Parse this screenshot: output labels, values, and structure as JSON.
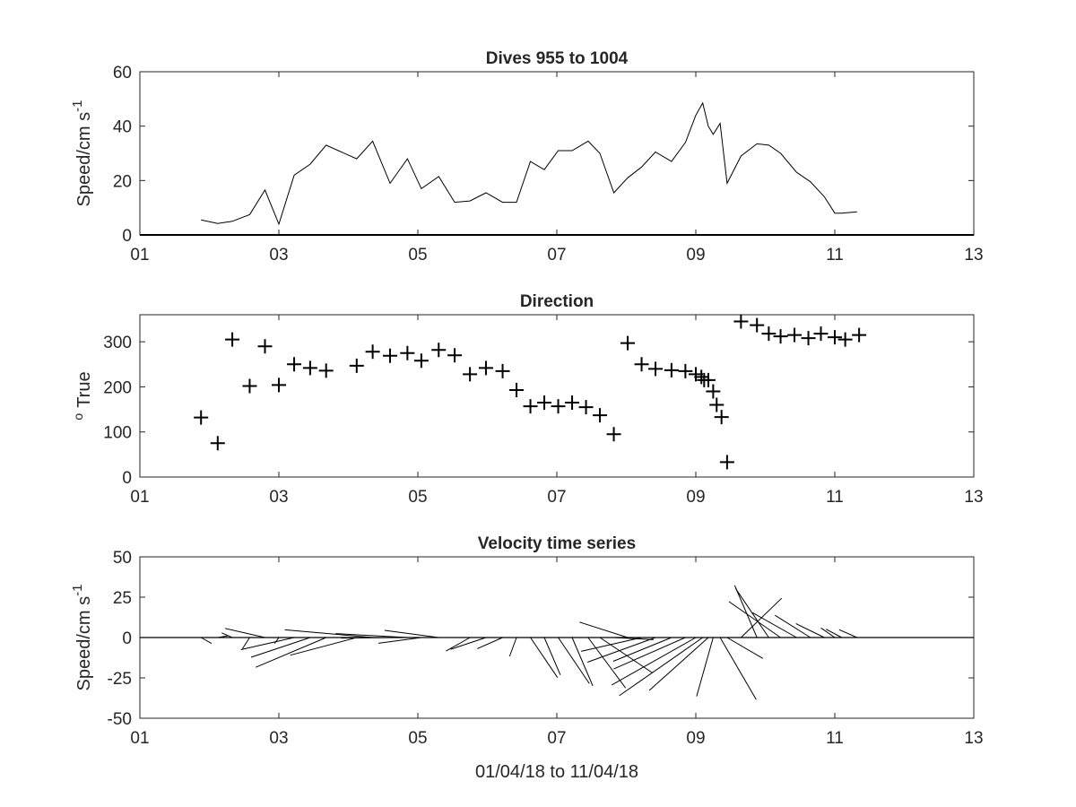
{
  "chart_data": [
    {
      "type": "line",
      "title": "Dives 955 to 1004",
      "ylabel": {
        "text": "Speed/cm s",
        "sup": "-1"
      },
      "xlabel": "",
      "xlim": [
        1,
        13
      ],
      "ylim": [
        0,
        60
      ],
      "xticks": [
        1,
        3,
        5,
        7,
        9,
        11,
        13
      ],
      "xtick_labels": [
        "01",
        "03",
        "05",
        "07",
        "09",
        "11",
        "13"
      ],
      "yticks": [
        0,
        20,
        40,
        60
      ],
      "ytick_labels": [
        "0",
        "20",
        "40",
        "60"
      ],
      "zero_line": true,
      "x": [
        1.88,
        2.12,
        2.33,
        2.58,
        2.8,
        3.0,
        3.22,
        3.45,
        3.68,
        4.12,
        4.35,
        4.6,
        4.85,
        5.05,
        5.3,
        5.53,
        5.75,
        5.98,
        6.22,
        6.42,
        6.62,
        6.82,
        7.02,
        7.22,
        7.45,
        7.62,
        7.82,
        8.02,
        8.22,
        8.42,
        8.65,
        8.85,
        9.0,
        9.1,
        9.18,
        9.25,
        9.35,
        9.45,
        9.65,
        9.88,
        10.05,
        10.22,
        10.45,
        10.65,
        10.85,
        11.0,
        11.1,
        11.32
      ],
      "y": [
        5.5,
        4.2,
        5.0,
        7.5,
        16.5,
        4.0,
        22.0,
        26.0,
        33.0,
        28.0,
        34.5,
        19.0,
        28.0,
        17.0,
        21.5,
        12.0,
        12.5,
        15.5,
        12.0,
        12.0,
        27.0,
        24.0,
        31.0,
        31.0,
        34.5,
        30.0,
        15.5,
        21.0,
        25.0,
        30.5,
        27.0,
        34.0,
        44.0,
        48.5,
        40.0,
        37.0,
        41.0,
        19.0,
        29.0,
        33.5,
        33.0,
        30.0,
        23.0,
        19.5,
        14.0,
        8.0,
        8.0,
        8.5
      ]
    },
    {
      "type": "scatter",
      "title": "Direction",
      "ylabel": {
        "text": "True",
        "sup": "o"
      },
      "xlabel": "",
      "marker": "+",
      "xlim": [
        1,
        13
      ],
      "ylim": [
        0,
        360
      ],
      "xticks": [
        1,
        3,
        5,
        7,
        9,
        11,
        13
      ],
      "xtick_labels": [
        "01",
        "03",
        "05",
        "07",
        "09",
        "11",
        "13"
      ],
      "yticks": [
        0,
        100,
        200,
        300
      ],
      "ytick_labels": [
        "0",
        "100",
        "200",
        "300"
      ],
      "x": [
        1.88,
        2.12,
        2.33,
        2.58,
        2.8,
        3.0,
        3.22,
        3.45,
        3.68,
        4.12,
        4.35,
        4.6,
        4.85,
        5.05,
        5.3,
        5.53,
        5.75,
        5.98,
        6.22,
        6.42,
        6.62,
        6.82,
        7.02,
        7.22,
        7.42,
        7.62,
        7.82,
        8.02,
        8.22,
        8.42,
        8.65,
        8.85,
        9.0,
        9.08,
        9.12,
        9.18,
        9.25,
        9.3,
        9.37,
        9.45,
        9.65,
        9.88,
        10.05,
        10.22,
        10.42,
        10.62,
        10.8,
        11.0,
        11.15,
        11.35
      ],
      "y": [
        132,
        75,
        305,
        202,
        290,
        204,
        250,
        242,
        236,
        247,
        278,
        269,
        275,
        258,
        282,
        270,
        228,
        242,
        235,
        193,
        157,
        165,
        157,
        165,
        155,
        137,
        95,
        297,
        250,
        240,
        237,
        235,
        228,
        222,
        215,
        215,
        190,
        160,
        133,
        33,
        345,
        337,
        318,
        312,
        315,
        308,
        318,
        310,
        305,
        315
      ]
    },
    {
      "type": "quiver",
      "title": "Velocity time series",
      "ylabel": {
        "text": "Speed/cm s",
        "sup": "-1"
      },
      "xlabel": "01/04/18 to 11/04/18",
      "xlim": [
        1,
        13
      ],
      "ylim": [
        -50,
        50
      ],
      "xticks": [
        1,
        3,
        5,
        7,
        9,
        11,
        13
      ],
      "xtick_labels": [
        "01",
        "03",
        "05",
        "07",
        "09",
        "11",
        "13"
      ],
      "yticks": [
        -50,
        -25,
        0,
        25,
        50
      ],
      "ytick_labels": [
        "-50",
        "-25",
        "0",
        "25",
        "50"
      ],
      "zero_line": true,
      "x": [
        1.88,
        2.12,
        2.33,
        2.58,
        2.8,
        3.0,
        3.22,
        3.45,
        3.68,
        4.12,
        4.35,
        4.6,
        4.85,
        5.05,
        5.3,
        5.53,
        5.75,
        5.98,
        6.22,
        6.42,
        6.62,
        6.82,
        7.02,
        7.22,
        7.45,
        7.62,
        7.82,
        8.02,
        8.22,
        8.42,
        8.65,
        8.85,
        9.0,
        9.1,
        9.18,
        9.25,
        9.35,
        9.45,
        9.65,
        9.88,
        10.05,
        10.22,
        10.45,
        10.65,
        10.85,
        11.0,
        11.1,
        11.32
      ],
      "speed": [
        5.5,
        4.2,
        5.0,
        7.5,
        16.5,
        4.0,
        22.0,
        26.0,
        33.0,
        28.0,
        34.5,
        19.0,
        28.0,
        17.0,
        21.5,
        12.0,
        12.5,
        15.5,
        12.0,
        12.0,
        27.0,
        24.0,
        31.0,
        31.0,
        34.5,
        30.0,
        15.5,
        21.0,
        25.0,
        30.5,
        27.0,
        34.0,
        44.0,
        48.5,
        40.0,
        37.0,
        41.0,
        19.0,
        29.0,
        33.5,
        33.0,
        30.0,
        23.0,
        19.5,
        14.0,
        8.0,
        8.0,
        8.5
      ],
      "direction_deg": [
        132,
        75,
        305,
        202,
        290,
        204,
        250,
        242,
        236,
        247,
        278,
        269,
        275,
        258,
        282,
        270,
        228,
        242,
        235,
        193,
        157,
        165,
        157,
        165,
        155,
        137,
        95,
        297,
        250,
        240,
        237,
        235,
        228,
        222,
        215,
        190,
        160,
        133,
        33,
        345,
        337,
        318,
        312,
        315,
        308,
        318,
        310,
        305
      ]
    }
  ]
}
